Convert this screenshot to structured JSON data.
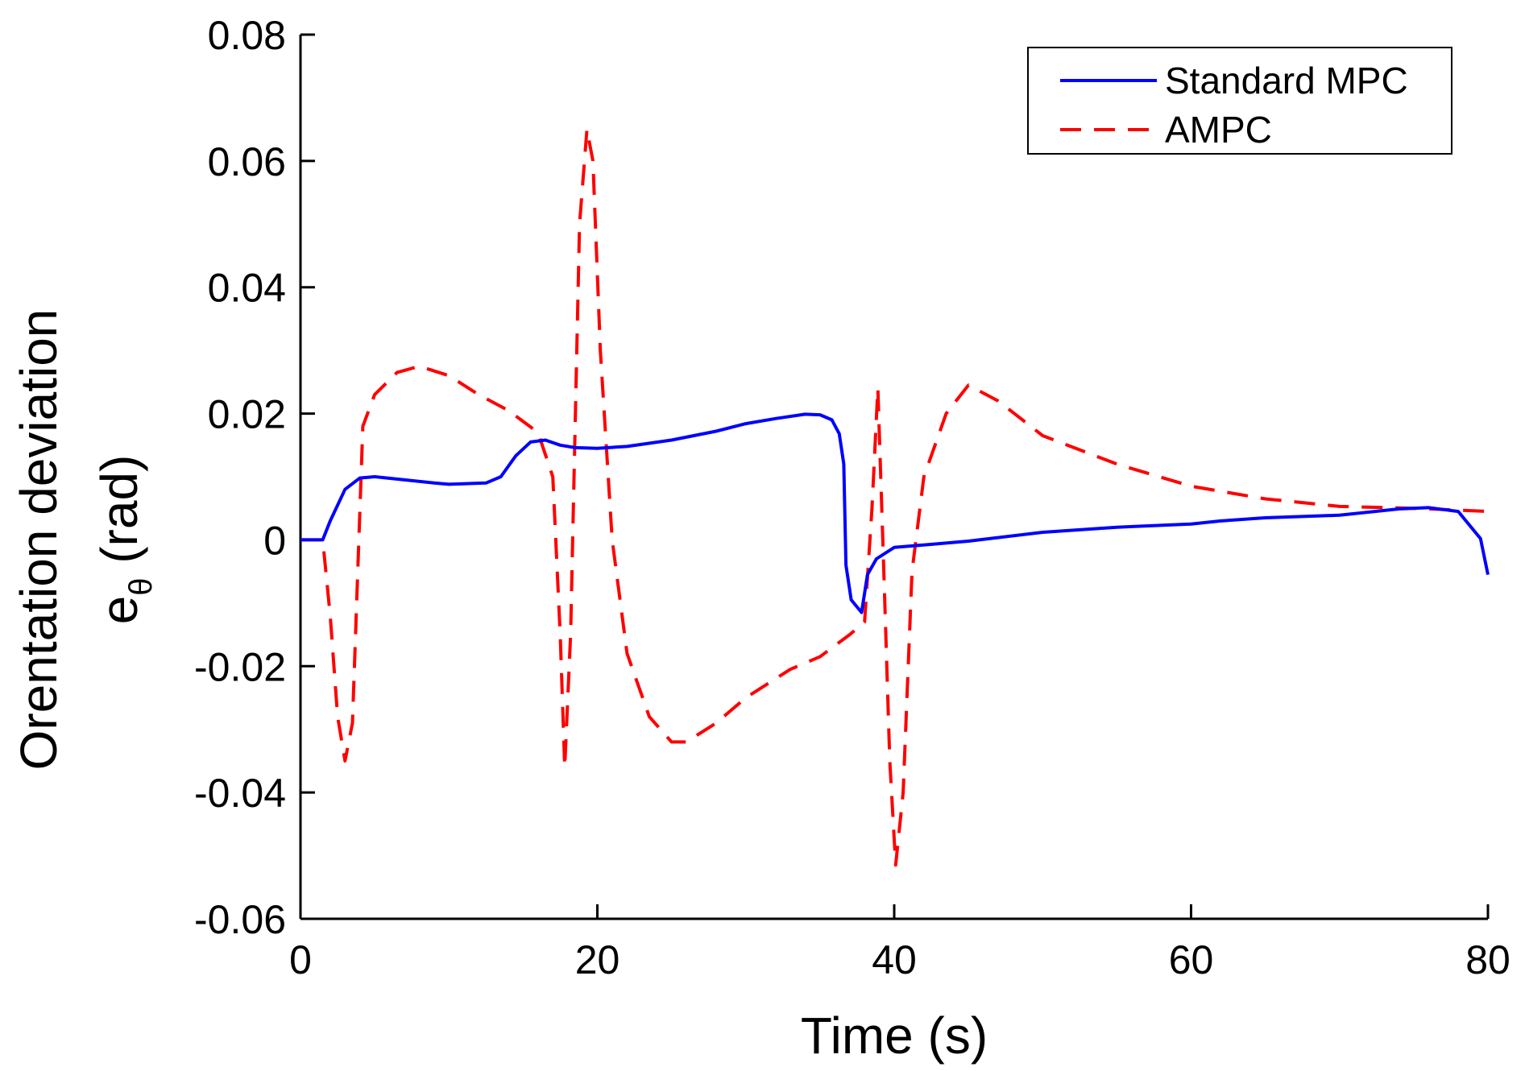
{
  "chart_data": {
    "type": "line",
    "title": "",
    "xlabel": "Time (s)",
    "ylabel_line1": "Orentation deviation",
    "ylabel_line2_base": "e",
    "ylabel_line2_sub": "θ",
    "ylabel_line2_rest": " (rad)",
    "xlim": [
      0,
      80
    ],
    "ylim": [
      -0.06,
      0.08
    ],
    "xticks": [
      0,
      20,
      40,
      60,
      80
    ],
    "xtick_labels": [
      "0",
      "20",
      "40",
      "60",
      "80"
    ],
    "yticks": [
      -0.06,
      -0.04,
      -0.02,
      0,
      0.02,
      0.04,
      0.06,
      0.08
    ],
    "ytick_labels": [
      "-0.06",
      "-0.04",
      "-0.02",
      "0",
      "0.02",
      "0.04",
      "0.06",
      "0.08"
    ],
    "grid": false,
    "legend_position": "top-right",
    "series": [
      {
        "name": "Standard MPC",
        "color": "#0000ff",
        "style": "solid",
        "x": [
          0,
          1.5,
          2,
          3,
          4,
          5,
          7,
          9,
          10,
          12.5,
          13.5,
          14.5,
          15.5,
          16.5,
          17.5,
          18.5,
          20,
          22,
          25,
          28,
          30,
          32,
          34,
          35,
          35.8,
          36.3,
          36.6,
          36.75,
          37.1,
          37.8,
          38.2,
          38.8,
          40,
          41,
          42,
          45,
          50,
          55,
          60,
          62,
          65,
          70,
          74,
          76,
          78,
          79.5,
          80
        ],
        "y": [
          0,
          0,
          0.003,
          0.008,
          0.0098,
          0.01,
          0.0095,
          0.009,
          0.0088,
          0.009,
          0.01,
          0.0133,
          0.0155,
          0.0158,
          0.015,
          0.0146,
          0.0145,
          0.0148,
          0.0158,
          0.0172,
          0.0184,
          0.0192,
          0.0199,
          0.0198,
          0.019,
          0.0168,
          0.012,
          -0.004,
          -0.0095,
          -0.0115,
          -0.0055,
          -0.003,
          -0.0012,
          -0.001,
          -0.0008,
          -0.0002,
          0.0012,
          0.002,
          0.0025,
          0.003,
          0.0035,
          0.0039,
          0.0049,
          0.0051,
          0.0045,
          0.0002,
          -0.0055
        ]
      },
      {
        "name": "AMPC",
        "color": "#ff0000",
        "style": "dashed",
        "x": [
          0,
          1.5,
          2,
          2.5,
          3,
          3.5,
          4.2,
          5,
          6.5,
          8,
          10,
          12,
          14,
          16,
          17,
          17.5,
          17.8,
          18.2,
          18.8,
          19.3,
          19.7,
          20.2,
          21,
          22,
          23.5,
          25,
          26,
          28,
          30,
          33,
          35,
          37,
          38,
          38.5,
          38.9,
          39.3,
          39.7,
          40.1,
          40.6,
          41.2,
          42,
          43.5,
          45,
          47,
          50,
          55,
          60,
          65,
          70,
          75,
          80
        ],
        "y": [
          0,
          0,
          -0.012,
          -0.028,
          -0.035,
          -0.029,
          0.018,
          0.023,
          0.0265,
          0.0275,
          0.026,
          0.023,
          0.0205,
          0.017,
          0.01,
          -0.015,
          -0.036,
          -0.015,
          0.05,
          0.065,
          0.06,
          0.03,
          0.0,
          -0.018,
          -0.028,
          -0.032,
          -0.032,
          -0.029,
          -0.025,
          -0.0205,
          -0.0185,
          -0.015,
          -0.013,
          0.005,
          0.024,
          -0.005,
          -0.035,
          -0.0515,
          -0.04,
          -0.005,
          0.01,
          0.02,
          0.0245,
          0.022,
          0.0165,
          0.012,
          0.0085,
          0.0065,
          0.0053,
          0.005,
          0.0045
        ]
      }
    ]
  }
}
